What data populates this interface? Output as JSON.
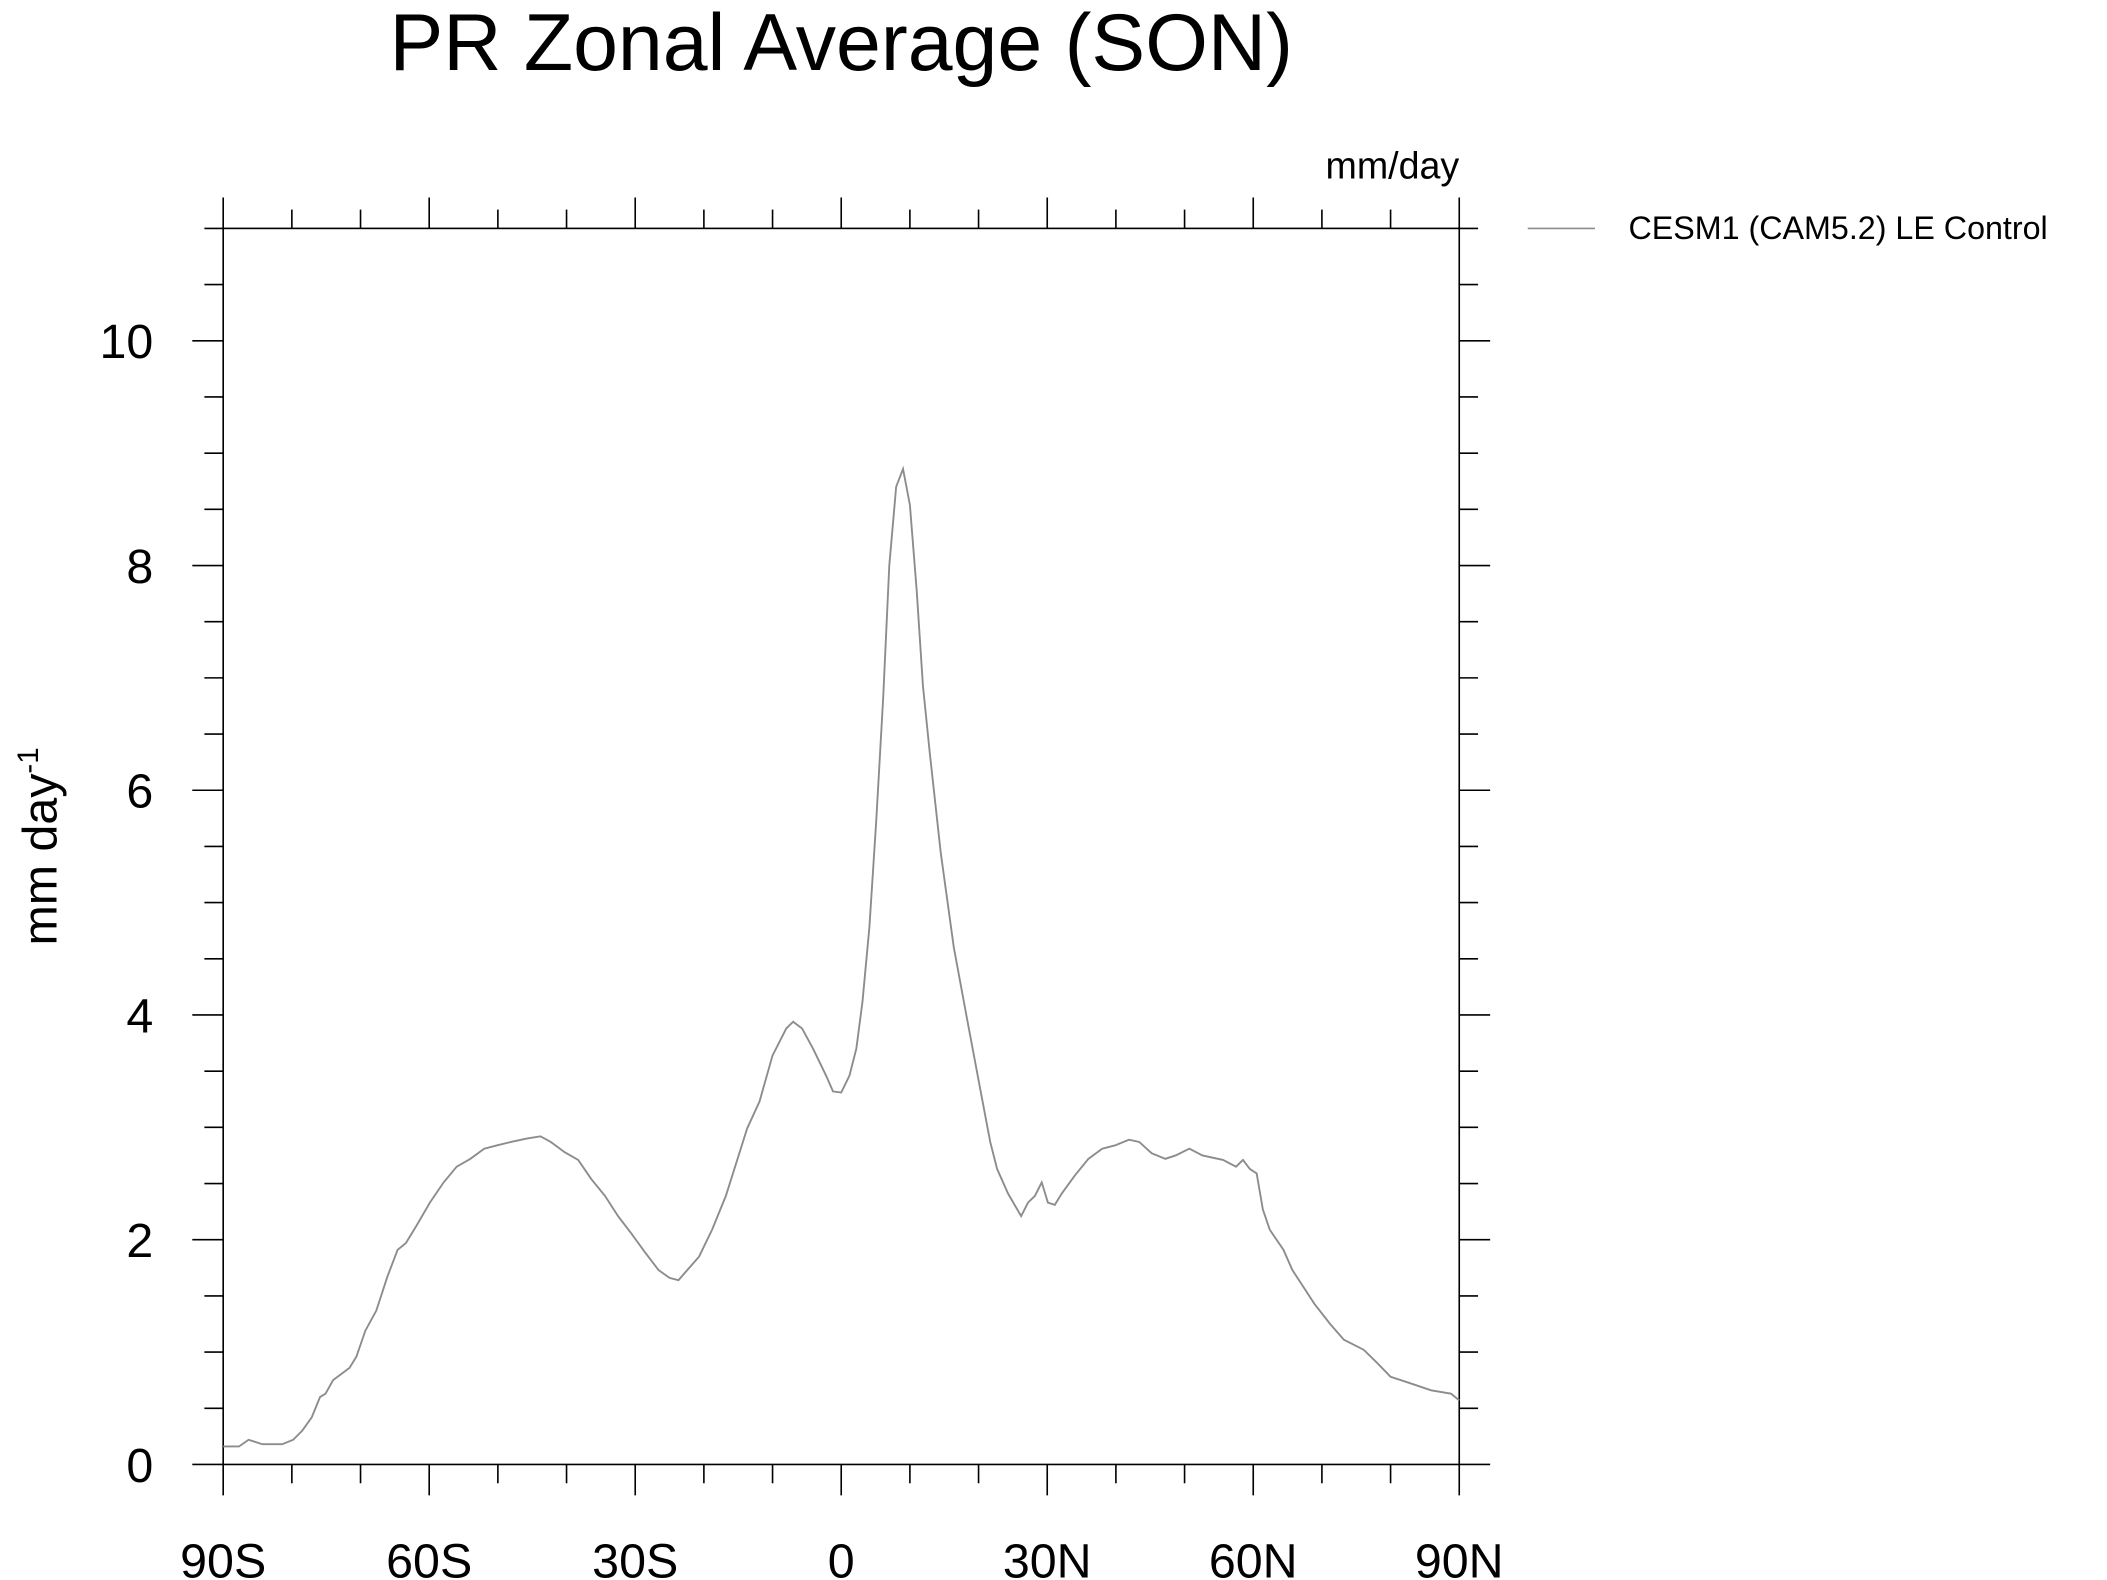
{
  "chart_data": {
    "type": "line",
    "title": "PR Zonal Average (SON)",
    "units_label": "mm/day",
    "ylabel": "mm day",
    "ylabel_exponent": "-1",
    "legend": "top-right-outside",
    "xlim": [
      -90,
      90
    ],
    "xticks": [
      {
        "value": -90,
        "label": "90S"
      },
      {
        "value": -60,
        "label": "60S"
      },
      {
        "value": -30,
        "label": "30S"
      },
      0,
      {
        "value": 30,
        "label": "30N"
      },
      {
        "value": 60,
        "label": "60N"
      },
      {
        "value": 90,
        "label": "90N"
      }
    ],
    "ylim": [
      0,
      11
    ],
    "yticks": [
      0,
      2,
      4,
      6,
      8,
      10
    ],
    "x": [
      -90,
      -87.7,
      -86.3,
      -84.3,
      -81.4,
      -79.8,
      -78.5,
      -77.1,
      -75.9,
      -75.1,
      -74,
      -71.6,
      -70.6,
      -69.3,
      -67.7,
      -66.1,
      -64.6,
      -63.4,
      -61.8,
      -59.9,
      -57.9,
      -56,
      -54,
      -52,
      -50.1,
      -48.1,
      -45.8,
      -43.8,
      -42.3,
      -40.3,
      -38.3,
      -36.4,
      -34.4,
      -32.5,
      -30.5,
      -28.6,
      -26.6,
      -25,
      -23.7,
      -20.7,
      -18.8,
      -16.8,
      -13.7,
      -11.9,
      -10,
      -8,
      -7,
      -5.7,
      -4.1,
      -2.2,
      -1.2,
      0,
      1.2,
      2.2,
      3.1,
      4.1,
      5.1,
      6.1,
      7,
      8,
      9,
      10,
      11,
      11.9,
      12.9,
      14.5,
      16.4,
      18.4,
      20.4,
      21.7,
      22.7,
      24.3,
      26.2,
      27.2,
      28.2,
      29.2,
      30.1,
      31.1,
      32.1,
      34,
      36,
      38,
      39.9,
      41.9,
      43.4,
      45.2,
      47.2,
      48.7,
      50.7,
      52.6,
      55.6,
      57.5,
      58.5,
      59.5,
      60.5,
      61.4,
      62.4,
      64.4,
      65.7,
      67.3,
      68.9,
      71.2,
      73.2,
      76.1,
      78.1,
      80,
      83,
      85.9,
      88.8,
      90
    ],
    "series": [
      {
        "name": "CESM1 (CAM5.2) LE Control",
        "color": "#8c8c8c",
        "values": [
          0.16,
          0.16,
          0.22,
          0.18,
          0.18,
          0.22,
          0.3,
          0.42,
          0.6,
          0.63,
          0.75,
          0.86,
          0.96,
          1.19,
          1.37,
          1.67,
          1.91,
          1.97,
          2.13,
          2.33,
          2.51,
          2.65,
          2.72,
          2.81,
          2.84,
          2.87,
          2.9,
          2.92,
          2.87,
          2.78,
          2.71,
          2.54,
          2.39,
          2.21,
          2.05,
          1.89,
          1.73,
          1.66,
          1.64,
          1.85,
          2.09,
          2.39,
          2.99,
          3.23,
          3.64,
          3.88,
          3.94,
          3.88,
          3.7,
          3.46,
          3.32,
          3.31,
          3.46,
          3.7,
          4.12,
          4.78,
          5.73,
          6.81,
          8.0,
          8.7,
          8.86,
          8.54,
          7.77,
          6.93,
          6.33,
          5.44,
          4.6,
          3.94,
          3.29,
          2.87,
          2.63,
          2.41,
          2.21,
          2.33,
          2.39,
          2.51,
          2.33,
          2.31,
          2.41,
          2.57,
          2.72,
          2.81,
          2.84,
          2.89,
          2.87,
          2.77,
          2.72,
          2.75,
          2.81,
          2.75,
          2.71,
          2.65,
          2.71,
          2.63,
          2.59,
          2.27,
          2.09,
          1.91,
          1.73,
          1.58,
          1.43,
          1.25,
          1.11,
          1.02,
          0.9,
          0.78,
          0.72,
          0.66,
          0.63,
          0.57
        ]
      }
    ]
  }
}
